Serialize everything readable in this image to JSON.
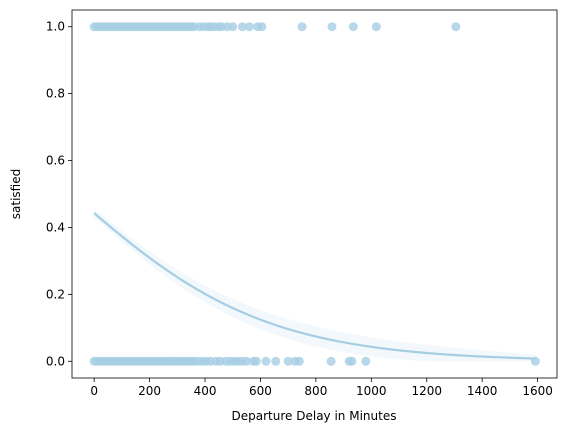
{
  "chart_data": {
    "type": "scatter",
    "title": "",
    "xlabel": "Departure Delay in Minutes",
    "ylabel": "satisfied",
    "xlim": [
      -80,
      1670
    ],
    "ylim": [
      -0.05,
      1.05
    ],
    "x_ticks": [
      0,
      200,
      400,
      600,
      800,
      1000,
      1200,
      1400,
      1600
    ],
    "y_ticks": [
      0.0,
      0.2,
      0.4,
      0.6,
      0.8,
      1.0
    ],
    "x_tick_labels": [
      "0",
      "200",
      "400",
      "600",
      "800",
      "1000",
      "1200",
      "1400",
      "1600"
    ],
    "y_tick_labels": [
      "0.0",
      "0.2",
      "0.4",
      "0.6",
      "0.8",
      "1.0"
    ],
    "grid": false,
    "legend": false,
    "point_color": "#a6cee3",
    "line_color": "#a6cee3",
    "series": [
      {
        "kind": "points",
        "points": [
          [
            0,
            1
          ],
          [
            10,
            1
          ],
          [
            20,
            1
          ],
          [
            30,
            1
          ],
          [
            40,
            1
          ],
          [
            50,
            1
          ],
          [
            60,
            1
          ],
          [
            70,
            1
          ],
          [
            80,
            1
          ],
          [
            90,
            1
          ],
          [
            100,
            1
          ],
          [
            110,
            1
          ],
          [
            120,
            1
          ],
          [
            130,
            1
          ],
          [
            140,
            1
          ],
          [
            150,
            1
          ],
          [
            160,
            1
          ],
          [
            170,
            1
          ],
          [
            180,
            1
          ],
          [
            190,
            1
          ],
          [
            200,
            1
          ],
          [
            210,
            1
          ],
          [
            220,
            1
          ],
          [
            230,
            1
          ],
          [
            240,
            1
          ],
          [
            250,
            1
          ],
          [
            260,
            1
          ],
          [
            270,
            1
          ],
          [
            280,
            1
          ],
          [
            290,
            1
          ],
          [
            300,
            1
          ],
          [
            310,
            1
          ],
          [
            320,
            1
          ],
          [
            330,
            1
          ],
          [
            340,
            1
          ],
          [
            350,
            1
          ],
          [
            360,
            1
          ],
          [
            380,
            1
          ],
          [
            395,
            1
          ],
          [
            410,
            1
          ],
          [
            420,
            1
          ],
          [
            435,
            1
          ],
          [
            450,
            1
          ],
          [
            460,
            1
          ],
          [
            480,
            1
          ],
          [
            500,
            1
          ],
          [
            535,
            1
          ],
          [
            560,
            1
          ],
          [
            590,
            1
          ],
          [
            605,
            1
          ],
          [
            750,
            1
          ],
          [
            858,
            1
          ],
          [
            935,
            1
          ],
          [
            1018,
            1
          ],
          [
            1305,
            1
          ],
          [
            0,
            0
          ],
          [
            10,
            0
          ],
          [
            20,
            0
          ],
          [
            30,
            0
          ],
          [
            40,
            0
          ],
          [
            50,
            0
          ],
          [
            60,
            0
          ],
          [
            70,
            0
          ],
          [
            80,
            0
          ],
          [
            90,
            0
          ],
          [
            100,
            0
          ],
          [
            110,
            0
          ],
          [
            120,
            0
          ],
          [
            130,
            0
          ],
          [
            140,
            0
          ],
          [
            150,
            0
          ],
          [
            160,
            0
          ],
          [
            170,
            0
          ],
          [
            180,
            0
          ],
          [
            190,
            0
          ],
          [
            200,
            0
          ],
          [
            210,
            0
          ],
          [
            220,
            0
          ],
          [
            230,
            0
          ],
          [
            240,
            0
          ],
          [
            250,
            0
          ],
          [
            260,
            0
          ],
          [
            270,
            0
          ],
          [
            280,
            0
          ],
          [
            290,
            0
          ],
          [
            300,
            0
          ],
          [
            310,
            0
          ],
          [
            320,
            0
          ],
          [
            330,
            0
          ],
          [
            340,
            0
          ],
          [
            350,
            0
          ],
          [
            360,
            0
          ],
          [
            375,
            0
          ],
          [
            390,
            0
          ],
          [
            405,
            0
          ],
          [
            420,
            0
          ],
          [
            440,
            0
          ],
          [
            455,
            0
          ],
          [
            475,
            0
          ],
          [
            490,
            0
          ],
          [
            505,
            0
          ],
          [
            520,
            0
          ],
          [
            535,
            0
          ],
          [
            550,
            0
          ],
          [
            575,
            0
          ],
          [
            585,
            0
          ],
          [
            620,
            0
          ],
          [
            655,
            0
          ],
          [
            700,
            0
          ],
          [
            725,
            0
          ],
          [
            740,
            0
          ],
          [
            855,
            0
          ],
          [
            920,
            0
          ],
          [
            930,
            0
          ],
          [
            980,
            0
          ],
          [
            1592,
            0
          ]
        ]
      },
      {
        "kind": "logistic-fit",
        "x_range": [
          0,
          1592
        ],
        "intercept": -0.23,
        "slope": -0.00287
      }
    ]
  }
}
